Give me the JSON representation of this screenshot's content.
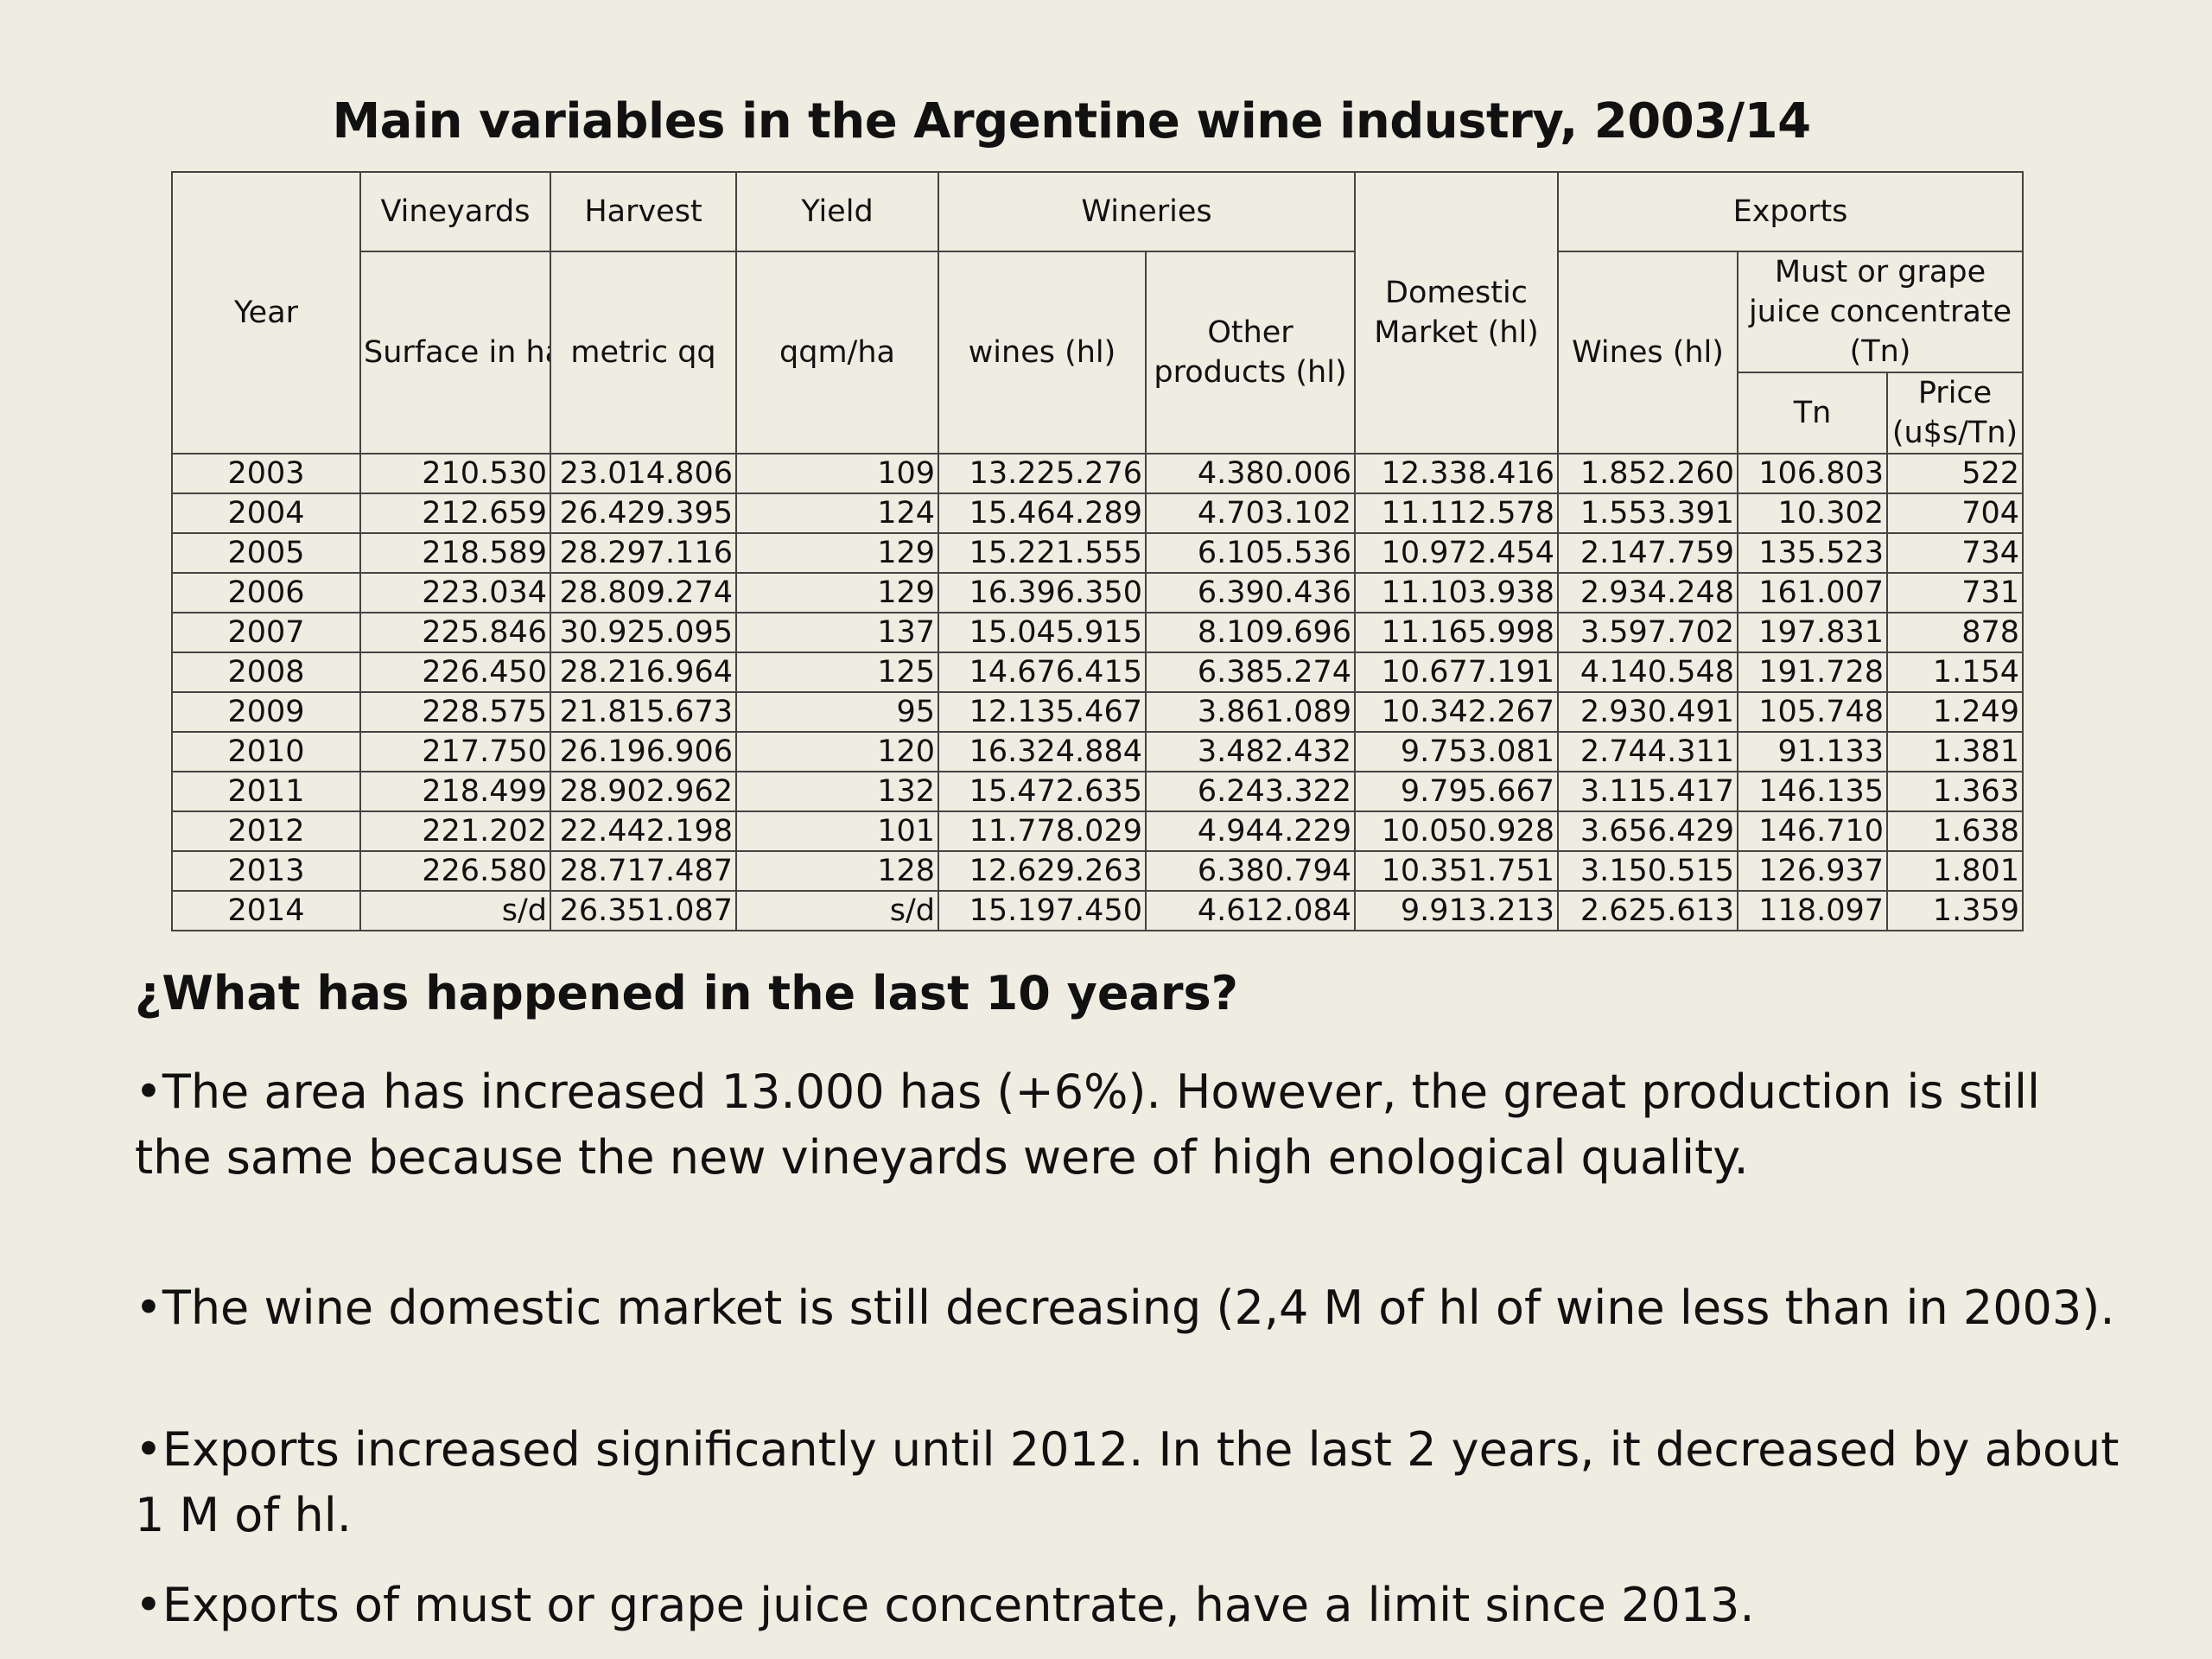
{
  "title": "Main variables in the Argentine wine industry, 2003/14",
  "table": {
    "headers": {
      "year": "Year",
      "vineyards": "Vineyards",
      "vineyards_sub": "Surface in ha",
      "harvest": "Harvest",
      "harvest_sub": "metric qq",
      "yield": "Yield",
      "yield_sub": "qqm/ha",
      "wineries": "Wineries",
      "wineries_wines": "wines (hl)",
      "wineries_other": "Other products (hl)",
      "domestic": "Domestic Market (hl)",
      "exports": "Exports",
      "exports_wines": "Wines (hl)",
      "exports_must": "Must or grape juice concentrate (Tn)",
      "exports_tn": "Tn",
      "exports_price": "Price (u$s/Tn)"
    },
    "rows": [
      [
        "2003",
        "210.530",
        "23.014.806",
        "109",
        "13.225.276",
        "4.380.006",
        "12.338.416",
        "1.852.260",
        "106.803",
        "522"
      ],
      [
        "2004",
        "212.659",
        "26.429.395",
        "124",
        "15.464.289",
        "4.703.102",
        "11.112.578",
        "1.553.391",
        "10.302",
        "704"
      ],
      [
        "2005",
        "218.589",
        "28.297.116",
        "129",
        "15.221.555",
        "6.105.536",
        "10.972.454",
        "2.147.759",
        "135.523",
        "734"
      ],
      [
        "2006",
        "223.034",
        "28.809.274",
        "129",
        "16.396.350",
        "6.390.436",
        "11.103.938",
        "2.934.248",
        "161.007",
        "731"
      ],
      [
        "2007",
        "225.846",
        "30.925.095",
        "137",
        "15.045.915",
        "8.109.696",
        "11.165.998",
        "3.597.702",
        "197.831",
        "878"
      ],
      [
        "2008",
        "226.450",
        "28.216.964",
        "125",
        "14.676.415",
        "6.385.274",
        "10.677.191",
        "4.140.548",
        "191.728",
        "1.154"
      ],
      [
        "2009",
        "228.575",
        "21.815.673",
        "95",
        "12.135.467",
        "3.861.089",
        "10.342.267",
        "2.930.491",
        "105.748",
        "1.249"
      ],
      [
        "2010",
        "217.750",
        "26.196.906",
        "120",
        "16.324.884",
        "3.482.432",
        "9.753.081",
        "2.744.311",
        "91.133",
        "1.381"
      ],
      [
        "2011",
        "218.499",
        "28.902.962",
        "132",
        "15.472.635",
        "6.243.322",
        "9.795.667",
        "3.115.417",
        "146.135",
        "1.363"
      ],
      [
        "2012",
        "221.202",
        "22.442.198",
        "101",
        "11.778.029",
        "4.944.229",
        "10.050.928",
        "3.656.429",
        "146.710",
        "1.638"
      ],
      [
        "2013",
        "226.580",
        "28.717.487",
        "128",
        "12.629.263",
        "6.380.794",
        "10.351.751",
        "3.150.515",
        "126.937",
        "1.801"
      ],
      [
        "2014",
        "s/d",
        "26.351.087",
        "s/d",
        "15.197.450",
        "4.612.084",
        "9.913.213",
        "2.625.613",
        "118.097",
        "1.359"
      ]
    ]
  },
  "question": "¿What has happened in the last 10 years?",
  "bullets": [
    "•The area has increased 13.000 has (+6%). However, the great production is still the same because the new vineyards were of high enological quality.",
    "•The wine domestic market is still decreasing (2,4 M of hl of wine less than in  2003).",
    "•Exports increased significantly until 2012. In the last 2 years, it decreased by about 1 M of hl.",
    "•Exports of must or grape juice concentrate, have a limit since 2013."
  ]
}
